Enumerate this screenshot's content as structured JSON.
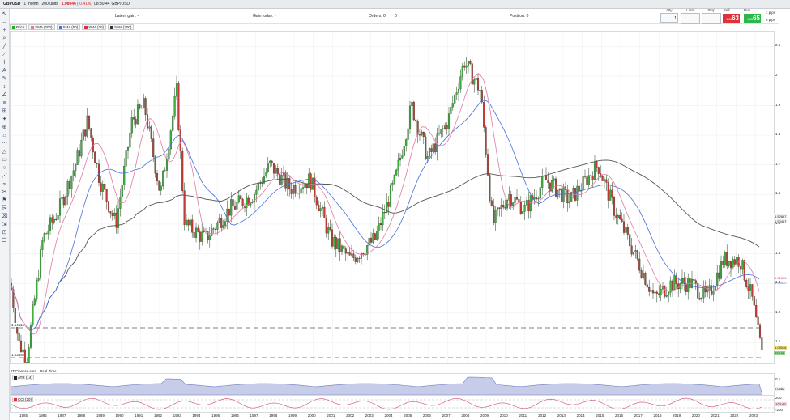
{
  "header": {
    "symbol": "GBPUSD",
    "interval": "1 month",
    "units": "200 units",
    "price": "1.08046",
    "change": "(-0.41%)",
    "time": "08:30:44",
    "pair": "GBP/USD"
  },
  "stats": {
    "latent_gain": "Latent gain:  -",
    "gain_today": "Gain today:  -",
    "orders": "Orders:  0",
    "orders_extra": "0",
    "position": "Position:  0"
  },
  "trade": {
    "qty_label": "Qty",
    "qty_value": "1",
    "limit_label": "Limit",
    "stop_label": "Stop",
    "sell_label": "Sell",
    "sell_small": "1.08",
    "sell_big": "63",
    "buy_label": "Buy",
    "buy_small": "1.08",
    "buy_big": "65",
    "pips1": "pips",
    "pips2": "pips",
    "pips_num1": "1",
    "pips_num2": "5",
    "sell_color": "#e0313a",
    "buy_color": "#2db74a"
  },
  "legend": {
    "price": "Price",
    "sma1": "SMA (200)",
    "sma2": "SMA (50)",
    "sma3": "SMA (20)",
    "sma4": "SMA (200)"
  },
  "y_axis": [
    "2.1",
    "2",
    "1.9",
    "1.8",
    "1.7",
    "1.6",
    "1.5",
    "1.4",
    "1.3",
    "1.2",
    "1.1"
  ],
  "price_tags": {
    "t1": "1.52867",
    "t2": "1.50487",
    "t3": "1.31536",
    "t4": "1.29520",
    "t5": "1.08046",
    "t6": "22.13h",
    "left1": "1.14116",
    "left2": "1.03450"
  },
  "footer": {
    "source": "IT-Finance.com - Real-Time",
    "atr": "ATR (14)",
    "atr_val": "0.1",
    "atr_val2": "0.0582",
    "cci": "CCI (20)",
    "cci_top": "200",
    "cci_val": "-103.62",
    "cci_bot": "-200"
  },
  "years": [
    "1985",
    "1986",
    "1987",
    "1988",
    "1989",
    "1990",
    "1991",
    "1992",
    "1993",
    "1994",
    "1995",
    "1996",
    "1997",
    "1998",
    "1999",
    "2000",
    "2001",
    "2002",
    "2003",
    "2004",
    "2005",
    "2006",
    "2007",
    "2008",
    "2009",
    "2010",
    "2011",
    "2012",
    "2013",
    "2014",
    "2015",
    "2016",
    "2017",
    "2018",
    "2019",
    "2020",
    "2021",
    "2022",
    "2023"
  ]
}
